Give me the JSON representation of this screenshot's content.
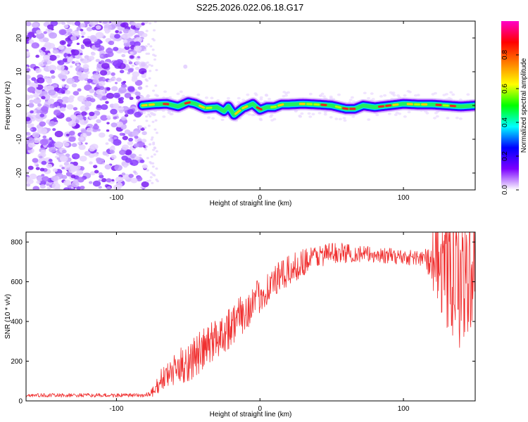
{
  "title": "S225.2026.022.06.18.G17",
  "chart_data": [
    {
      "type": "heatmap",
      "name": "spectrogram",
      "xlabel": "Height of straight line (km)",
      "ylabel": "Frequency (Hz)",
      "xlim": [
        -163,
        150
      ],
      "ylim": [
        -25,
        25
      ],
      "xticks": [
        -100,
        0,
        100
      ],
      "xtick_labels": [
        "-100",
        "0",
        "100"
      ],
      "yticks": [
        20,
        10,
        0,
        -10,
        -20
      ],
      "ytick_labels": [
        "20",
        "10",
        "0",
        "-10",
        "-20"
      ],
      "noise_region_x": [
        -163,
        -80
      ],
      "signal_start_x": -82,
      "signal_centerline": [
        [
          -82,
          0
        ],
        [
          -75,
          0.3
        ],
        [
          -65,
          0.5
        ],
        [
          -57,
          -0.3
        ],
        [
          -50,
          1.0
        ],
        [
          -45,
          0.5
        ],
        [
          -38,
          -0.8
        ],
        [
          -30,
          -0.5
        ],
        [
          -25,
          -1.7
        ],
        [
          -22,
          -0.3
        ],
        [
          -18,
          -2.8
        ],
        [
          -12,
          -0.8
        ],
        [
          -5,
          0.5
        ],
        [
          0,
          -1.3
        ],
        [
          5,
          -0.5
        ],
        [
          10,
          -0.5
        ],
        [
          15,
          0.3
        ],
        [
          20,
          0.3
        ],
        [
          30,
          0.5
        ],
        [
          40,
          0.3
        ],
        [
          50,
          0.0
        ],
        [
          60,
          -1.0
        ],
        [
          66,
          -1.0
        ],
        [
          72,
          0.0
        ],
        [
          80,
          -0.5
        ],
        [
          90,
          0.0
        ],
        [
          100,
          0.5
        ],
        [
          110,
          0.3
        ],
        [
          120,
          0.3
        ],
        [
          130,
          0.0
        ],
        [
          140,
          -0.3
        ],
        [
          150,
          0.0
        ]
      ],
      "colorbar": {
        "label": "Normalized spectral amplitude",
        "range": [
          0,
          1
        ],
        "ticks": [
          0.0,
          0.2,
          0.4,
          0.6,
          0.8
        ],
        "tick_labels": [
          "0.0",
          "0.2",
          "0.4",
          "0.6",
          "0.8"
        ],
        "colors": [
          "#ffffff",
          "#7b00ff",
          "#0000ff",
          "#00ffff",
          "#00ff00",
          "#ffff00",
          "#ff8000",
          "#ff0000",
          "#ff00c8"
        ]
      }
    },
    {
      "type": "line",
      "name": "snr",
      "xlabel": "Height of straight line (km)",
      "ylabel": "SNR (10 * v/v)",
      "xlim": [
        -163,
        150
      ],
      "ylim": [
        0,
        850
      ],
      "xticks": [
        -100,
        0,
        100
      ],
      "xtick_labels": [
        "-100",
        "0",
        "100"
      ],
      "yticks": [
        0,
        200,
        400,
        600,
        800
      ],
      "ytick_labels": [
        "0",
        "200",
        "400",
        "600",
        "800"
      ],
      "line_color": "#f03030",
      "trend": [
        [
          -163,
          28
        ],
        [
          -80,
          28
        ],
        [
          -73,
          45
        ],
        [
          -70,
          100
        ],
        [
          -60,
          150
        ],
        [
          -50,
          200
        ],
        [
          -40,
          250
        ],
        [
          -30,
          320
        ],
        [
          -20,
          380
        ],
        [
          -10,
          450
        ],
        [
          0,
          530
        ],
        [
          10,
          600
        ],
        [
          20,
          650
        ],
        [
          30,
          700
        ],
        [
          40,
          730
        ],
        [
          50,
          745
        ],
        [
          60,
          745
        ],
        [
          70,
          740
        ],
        [
          80,
          735
        ],
        [
          90,
          730
        ],
        [
          100,
          725
        ],
        [
          110,
          720
        ],
        [
          118,
          715
        ],
        [
          125,
          600
        ],
        [
          132,
          500
        ],
        [
          140,
          450
        ],
        [
          150,
          600
        ]
      ],
      "noise_amplitude": [
        [
          -163,
          10
        ],
        [
          -80,
          10
        ],
        [
          -72,
          45
        ],
        [
          -50,
          110
        ],
        [
          -20,
          110
        ],
        [
          0,
          90
        ],
        [
          20,
          80
        ],
        [
          40,
          60
        ],
        [
          80,
          40
        ],
        [
          115,
          40
        ],
        [
          120,
          200
        ],
        [
          135,
          360
        ],
        [
          150,
          320
        ]
      ]
    }
  ]
}
